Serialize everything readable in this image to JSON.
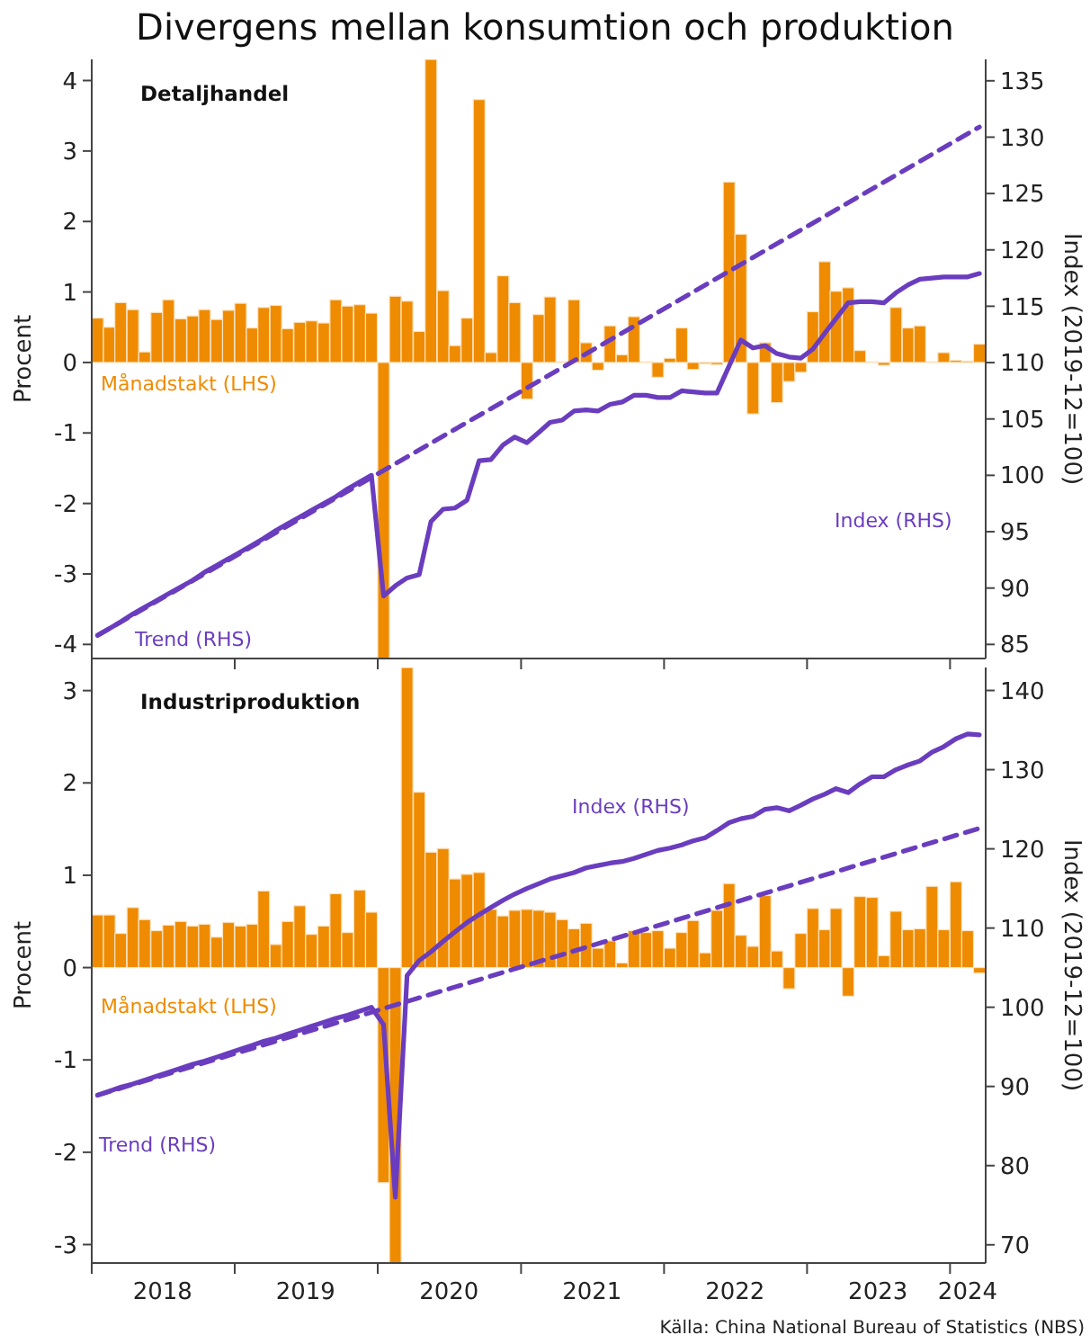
{
  "chart_data": [
    {
      "type": "bar",
      "title": "Divergens mellan konsumtion och produktion",
      "subtitle": "Detaljhandel",
      "ylabel": "Procent",
      "y2label": "Index (2019-12=100)",
      "tick_labels": "y",
      "x": [
        "2018-01-16",
        "2018-02-15",
        "2018-03-16",
        "2018-04-16",
        "2018-05-16",
        "2018-06-16",
        "2018-07-16",
        "2018-08-16",
        "2018-09-16",
        "2018-10-16",
        "2018-11-16",
        "2018-12-16",
        "2019-01-16",
        "2019-02-15",
        "2019-03-16",
        "2019-04-16",
        "2019-05-16",
        "2019-06-16",
        "2019-07-16",
        "2019-08-16",
        "2019-09-16",
        "2019-10-16",
        "2019-11-16",
        "2019-12-16",
        "2020-01-16",
        "2020-02-15",
        "2020-03-16",
        "2020-04-16",
        "2020-05-16",
        "2020-06-16",
        "2020-07-16",
        "2020-08-16",
        "2020-09-16",
        "2020-10-16",
        "2020-11-16",
        "2020-12-16",
        "2021-01-16",
        "2021-02-15",
        "2021-03-16",
        "2021-04-16",
        "2021-05-16",
        "2021-06-16",
        "2021-07-16",
        "2021-08-16",
        "2021-09-16",
        "2021-10-16",
        "2021-11-16",
        "2021-12-16",
        "2022-01-16",
        "2022-02-15",
        "2022-03-16",
        "2022-04-16",
        "2022-05-16",
        "2022-06-16",
        "2022-07-16",
        "2022-08-16",
        "2022-09-16",
        "2022-10-16",
        "2022-11-16",
        "2022-12-16",
        "2023-01-16",
        "2023-02-15",
        "2023-03-16",
        "2023-04-16",
        "2023-05-16",
        "2023-06-16",
        "2023-07-16",
        "2023-08-16",
        "2023-09-16",
        "2023-10-16",
        "2023-11-16",
        "2023-12-16",
        "2024-01-16",
        "2024-02-15",
        "2024-03-16"
      ],
      "xlim": [
        "2018-01-01",
        "2024-04-01"
      ],
      "xticks": [
        {
          "value": "2018-01-01",
          "label": null
        },
        {
          "value": "2019-01-01",
          "label": null
        },
        {
          "value": "2020-01-01",
          "label": null
        },
        {
          "value": "2021-01-01",
          "label": null
        },
        {
          "value": "2022-01-01",
          "label": null
        },
        {
          "value": "2023-01-01",
          "label": null
        },
        {
          "value": "2024-01-01",
          "label": null
        }
      ],
      "ylim": [
        -4.2,
        4.3
      ],
      "yticks": [
        -4,
        -3,
        -2,
        -1,
        0,
        1,
        2,
        3,
        4
      ],
      "y2lim": [
        83.75,
        136.9
      ],
      "y2ticks": [
        85,
        90,
        95,
        100,
        105,
        110,
        115,
        120,
        125,
        130,
        135
      ],
      "series": [
        {
          "name": "Månadstakt (LHS)",
          "color": "#ef8b00",
          "values": [
            0.63,
            0.5,
            0.85,
            0.75,
            0.15,
            0.71,
            0.89,
            0.62,
            0.66,
            0.75,
            0.61,
            0.74,
            0.84,
            0.49,
            0.78,
            0.81,
            0.48,
            0.57,
            0.59,
            0.56,
            0.89,
            0.8,
            0.82,
            0.7,
            -4.2,
            0.94,
            0.87,
            0.44,
            4.3,
            1.02,
            0.24,
            0.63,
            3.73,
            0.14,
            1.23,
            0.85,
            -0.52,
            0.68,
            0.93,
            0.01,
            0.89,
            0.28,
            -0.11,
            0.52,
            0.11,
            0.65,
            0.01,
            -0.21,
            0.06,
            0.49,
            -0.1,
            -0.02,
            -0.03,
            2.56,
            1.82,
            -0.73,
            0.28,
            -0.57,
            -0.27,
            -0.14,
            0.72,
            1.43,
            1.01,
            1.06,
            0.17,
            0.01,
            -0.04,
            0.78,
            0.49,
            0.52,
            0.01,
            0.14,
            0.03,
            0.02,
            0.26
          ]
        },
        {
          "type": "line",
          "axis": "y2",
          "name": "Index (RHS)",
          "color": "#6a3dbf",
          "line_style": "solid",
          "values": [
            85.8,
            86.4,
            87.0,
            87.7,
            88.3,
            88.9,
            89.5,
            90.1,
            90.7,
            91.4,
            92.0,
            92.6,
            93.2,
            93.8,
            94.4,
            95.1,
            95.7,
            96.3,
            96.9,
            97.5,
            98.1,
            98.8,
            99.4,
            100.0,
            89.3,
            90.2,
            90.9,
            91.2,
            95.9,
            97.0,
            97.1,
            97.8,
            101.3,
            101.4,
            102.7,
            103.4,
            102.9,
            103.8,
            104.7,
            104.9,
            105.7,
            105.8,
            105.7,
            106.3,
            106.5,
            107.1,
            107.1,
            106.9,
            106.9,
            107.5,
            107.4,
            107.3,
            107.3,
            109.7,
            112.0,
            111.3,
            111.5,
            110.8,
            110.5,
            110.4,
            111.2,
            112.6,
            113.9,
            115.3,
            115.4,
            115.4,
            115.3,
            116.2,
            116.9,
            117.4,
            117.5,
            117.6,
            117.6,
            117.6,
            117.9
          ]
        },
        {
          "type": "line",
          "axis": "y2",
          "name": "Trend (RHS)",
          "color": "#6a3dbf",
          "line_style": "dashed",
          "x": [
            "2018-01-16",
            "2024-03-16"
          ],
          "values": [
            85.8,
            130.9
          ]
        }
      ]
    },
    {
      "type": "bar",
      "title": "Industriproduktion",
      "ylabel": "Procent",
      "y2label": "Index (2019-12=100)",
      "x": [
        "2018-01-16",
        "2018-02-15",
        "2018-03-16",
        "2018-04-16",
        "2018-05-16",
        "2018-06-16",
        "2018-07-16",
        "2018-08-16",
        "2018-09-16",
        "2018-10-16",
        "2018-11-16",
        "2018-12-16",
        "2019-01-16",
        "2019-02-15",
        "2019-03-16",
        "2019-04-16",
        "2019-05-16",
        "2019-06-16",
        "2019-07-16",
        "2019-08-16",
        "2019-09-16",
        "2019-10-16",
        "2019-11-16",
        "2019-12-16",
        "2020-01-16",
        "2020-02-15",
        "2020-03-16",
        "2020-04-16",
        "2020-05-16",
        "2020-06-16",
        "2020-07-16",
        "2020-08-16",
        "2020-09-16",
        "2020-10-16",
        "2020-11-16",
        "2020-12-16",
        "2021-01-16",
        "2021-02-15",
        "2021-03-16",
        "2021-04-16",
        "2021-05-16",
        "2021-06-16",
        "2021-07-16",
        "2021-08-16",
        "2021-09-16",
        "2021-10-16",
        "2021-11-16",
        "2021-12-16",
        "2022-01-16",
        "2022-02-15",
        "2022-03-16",
        "2022-04-16",
        "2022-05-16",
        "2022-06-16",
        "2022-07-16",
        "2022-08-16",
        "2022-09-16",
        "2022-10-16",
        "2022-11-16",
        "2022-12-16",
        "2023-01-16",
        "2023-02-15",
        "2023-03-16",
        "2023-04-16",
        "2023-05-16",
        "2023-06-16",
        "2023-07-16",
        "2023-08-16",
        "2023-09-16",
        "2023-10-16",
        "2023-11-16",
        "2023-12-16",
        "2024-01-16",
        "2024-02-15",
        "2024-03-16"
      ],
      "xlim": [
        "2018-01-01",
        "2024-04-01"
      ],
      "xticks": [
        {
          "value": "2018-01-01",
          "label": null
        },
        {
          "value": "2018-07-01",
          "label": "2018"
        },
        {
          "value": "2019-01-01",
          "label": null
        },
        {
          "value": "2019-07-01",
          "label": "2019"
        },
        {
          "value": "2020-01-01",
          "label": null
        },
        {
          "value": "2020-07-01",
          "label": "2020"
        },
        {
          "value": "2021-01-01",
          "label": null
        },
        {
          "value": "2021-07-01",
          "label": "2021"
        },
        {
          "value": "2022-01-01",
          "label": null
        },
        {
          "value": "2022-07-01",
          "label": "2022"
        },
        {
          "value": "2023-01-01",
          "label": null
        },
        {
          "value": "2023-07-01",
          "label": "2023"
        },
        {
          "value": "2024-01-01",
          "label": null
        },
        {
          "value": "2024-02-15",
          "label": "2024"
        }
      ],
      "ylim": [
        -3.2,
        3.25
      ],
      "yticks": [
        -3,
        -2,
        -1,
        0,
        1,
        2,
        3
      ],
      "y2lim": [
        67.7,
        142.9
      ],
      "y2ticks": [
        70,
        80,
        90,
        100,
        110,
        120,
        130,
        140
      ],
      "annotations": [
        "Källa: China National Bureau of Statistics (NBS)"
      ],
      "series": [
        {
          "name": "Månadstakt (LHS)",
          "color": "#ef8b00",
          "values": [
            0.57,
            0.57,
            0.37,
            0.65,
            0.52,
            0.4,
            0.46,
            0.5,
            0.45,
            0.47,
            0.33,
            0.49,
            0.45,
            0.47,
            0.83,
            0.25,
            0.5,
            0.67,
            0.36,
            0.45,
            0.8,
            0.38,
            0.84,
            0.6,
            -2.33,
            -3.2,
            3.25,
            1.9,
            1.25,
            1.29,
            0.96,
            1.01,
            1.03,
            0.63,
            0.56,
            0.62,
            0.63,
            0.62,
            0.6,
            0.52,
            0.42,
            0.48,
            0.21,
            0.29,
            0.05,
            0.4,
            0.38,
            0.4,
            0.21,
            0.38,
            0.51,
            0.16,
            0.62,
            0.91,
            0.35,
            0.23,
            0.78,
            0.18,
            -0.23,
            0.37,
            0.64,
            0.41,
            0.64,
            -0.31,
            0.77,
            0.76,
            0.13,
            0.61,
            0.41,
            0.42,
            0.88,
            0.41,
            0.93,
            0.4,
            -0.06
          ]
        },
        {
          "type": "line",
          "axis": "y2",
          "name": "Index (RHS)",
          "color": "#6a3dbf",
          "line_style": "solid",
          "values": [
            88.9,
            89.4,
            89.9,
            90.3,
            90.8,
            91.3,
            91.8,
            92.3,
            92.8,
            93.2,
            93.7,
            94.2,
            94.7,
            95.2,
            95.7,
            96.1,
            96.6,
            97.1,
            97.6,
            98.1,
            98.6,
            99.0,
            99.5,
            100.0,
            97.8,
            76.0,
            104.0,
            105.9,
            107.0,
            108.3,
            109.5,
            110.7,
            111.7,
            112.6,
            113.5,
            114.3,
            115.0,
            115.6,
            116.2,
            116.6,
            117.0,
            117.6,
            117.9,
            118.2,
            118.4,
            118.8,
            119.3,
            119.8,
            120.1,
            120.5,
            121.0,
            121.4,
            122.3,
            123.3,
            123.8,
            124.1,
            125.0,
            125.2,
            124.8,
            125.5,
            126.3,
            126.9,
            127.6,
            127.1,
            128.2,
            129.1,
            129.1,
            130.0,
            130.6,
            131.1,
            132.2,
            132.9,
            133.9,
            134.5,
            134.4
          ]
        },
        {
          "type": "line",
          "axis": "y2",
          "name": "Trend (RHS)",
          "color": "#6a3dbf",
          "line_style": "dashed",
          "x": [
            "2018-01-16",
            "2024-03-16"
          ],
          "values": [
            88.9,
            122.6
          ]
        }
      ]
    }
  ]
}
